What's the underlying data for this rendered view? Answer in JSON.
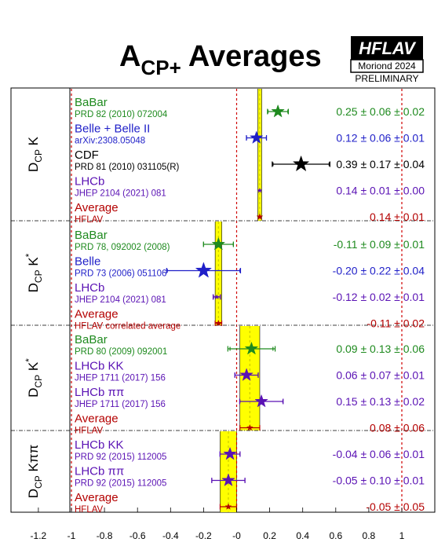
{
  "title": {
    "main": "A",
    "sub": "CP+",
    "rest": " Averages"
  },
  "logo": {
    "name": "HFLAV",
    "conference": "Moriond 2024",
    "status": "PRELIMINARY"
  },
  "colors": {
    "babar": "#1e8a1e",
    "blue": "#1f1fc8",
    "lhcb_purple": "#5a12b4",
    "black": "#000000",
    "average": "#b40000",
    "band": "#ffff00",
    "band_edge": "#cccc00"
  },
  "chart_data": {
    "type": "scatter",
    "xlim": [
      -1.3,
      1.3
    ],
    "x_ticks": [
      -1.2,
      -1.0,
      -0.8,
      -0.6,
      -0.4,
      -0.2,
      0.0,
      0.2,
      0.4,
      0.6,
      0.8,
      1.0
    ],
    "x_tick_labels": [
      "-1.2",
      "-1",
      "-0.8",
      "-0.6",
      "-0.4",
      "-0.2",
      "-0",
      "0.2",
      "0.4",
      "0.6",
      "0.8",
      "1"
    ],
    "reference_lines": [
      -1,
      0,
      1
    ],
    "groups": [
      {
        "label_main": "D",
        "label_sub": "CP",
        "label_rest": " K",
        "label_sup": "",
        "band": {
          "center": 0.14,
          "halfwidth": 0.01
        },
        "rows": [
          {
            "name": "BaBar",
            "ref": "PRD 82 (2010) 072004",
            "value": 0.25,
            "stat": 0.06,
            "syst": 0.02,
            "result": "0.25 ± 0.06 ± 0.02",
            "color": "babar",
            "average": false
          },
          {
            "name": "Belle + Belle II",
            "ref": "arXiv:2308.05048",
            "value": 0.12,
            "stat": 0.06,
            "syst": 0.01,
            "result": "0.12 ± 0.06 ± 0.01",
            "color": "blue",
            "average": false
          },
          {
            "name": "CDF",
            "ref": "PRD 81 (2010) 031105(R)",
            "value": 0.39,
            "stat": 0.17,
            "syst": 0.04,
            "result": "0.39 ± 0.17 ± 0.04",
            "color": "black",
            "average": false
          },
          {
            "name": "LHCb",
            "ref": "JHEP 2104 (2021) 081",
            "value": 0.14,
            "stat": 0.01,
            "syst": 0.0,
            "result": "0.14 ± 0.01 ± 0.00",
            "color": "lhcb_purple",
            "average": false
          },
          {
            "name": "Average",
            "ref": "HFLAV",
            "value": 0.14,
            "stat": 0.01,
            "syst": 0.0,
            "result": "0.14 ± 0.01",
            "color": "average",
            "average": true
          }
        ]
      },
      {
        "label_main": "D",
        "label_sub": "CP",
        "label_rest": " K",
        "label_sup": "*",
        "band": {
          "center": -0.11,
          "halfwidth": 0.02
        },
        "rows": [
          {
            "name": "BaBar",
            "ref": "PRD 78, 092002 (2008)",
            "value": -0.11,
            "stat": 0.09,
            "syst": 0.01,
            "result": "-0.11 ± 0.09 ± 0.01",
            "color": "babar",
            "average": false
          },
          {
            "name": "Belle",
            "ref": "PRD 73 (2006) 051106",
            "value": -0.2,
            "stat": 0.22,
            "syst": 0.04,
            "result": "-0.20 ± 0.22 ± 0.04",
            "color": "blue",
            "average": false
          },
          {
            "name": "LHCb",
            "ref": "JHEP 2104 (2021) 081",
            "value": -0.12,
            "stat": 0.02,
            "syst": 0.01,
            "result": "-0.12 ± 0.02 ± 0.01",
            "color": "lhcb_purple",
            "average": false
          },
          {
            "name": "Average",
            "ref": "HFLAV correlated average",
            "value": -0.11,
            "stat": 0.02,
            "syst": 0.0,
            "result": "-0.11 ± 0.02",
            "color": "average",
            "average": true
          }
        ]
      },
      {
        "label_main": "D",
        "label_sub": "CP",
        "label_rest": " K",
        "label_sup": "*",
        "band": {
          "center": 0.08,
          "halfwidth": 0.06
        },
        "rows": [
          {
            "name": "BaBar",
            "ref": "PRD 80 (2009) 092001",
            "value": 0.09,
            "stat": 0.13,
            "syst": 0.06,
            "result": "0.09 ± 0.13 ± 0.06",
            "color": "babar",
            "average": false
          },
          {
            "name": "LHCb KK",
            "ref": "JHEP 1711 (2017) 156",
            "value": 0.06,
            "stat": 0.07,
            "syst": 0.01,
            "result": "0.06 ± 0.07 ± 0.01",
            "color": "lhcb_purple",
            "average": false
          },
          {
            "name": "LHCb ππ",
            "ref": "JHEP 1711 (2017) 156",
            "value": 0.15,
            "stat": 0.13,
            "syst": 0.02,
            "result": "0.15 ± 0.13 ± 0.02",
            "color": "lhcb_purple",
            "average": false
          },
          {
            "name": "Average",
            "ref": "HFLAV",
            "value": 0.08,
            "stat": 0.06,
            "syst": 0.0,
            "result": "0.08 ± 0.06",
            "color": "average",
            "average": true
          }
        ]
      },
      {
        "label_main": "D",
        "label_sub": "CP",
        "label_rest": " Kππ",
        "label_sup": "",
        "band": {
          "center": -0.05,
          "halfwidth": 0.05
        },
        "rows": [
          {
            "name": "LHCb KK",
            "ref": "PRD 92 (2015) 112005",
            "value": -0.04,
            "stat": 0.06,
            "syst": 0.01,
            "result": "-0.04 ± 0.06 ± 0.01",
            "color": "lhcb_purple",
            "average": false
          },
          {
            "name": "LHCb ππ",
            "ref": "PRD 92 (2015) 112005",
            "value": -0.05,
            "stat": 0.1,
            "syst": 0.01,
            "result": "-0.05 ± 0.10 ± 0.01",
            "color": "lhcb_purple",
            "average": false
          },
          {
            "name": "Average",
            "ref": "HFLAV",
            "value": -0.05,
            "stat": 0.05,
            "syst": 0.0,
            "result": "-0.05 ± 0.05",
            "color": "average",
            "average": true
          }
        ]
      }
    ]
  }
}
